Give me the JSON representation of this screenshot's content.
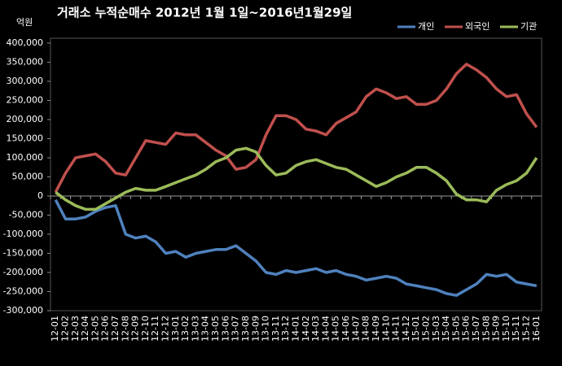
{
  "chart_data": {
    "type": "line",
    "title": "거래소  누적순매수 2012년 1월 1일~2016년1월29일",
    "y_label": "억원",
    "categories": [
      "12-01",
      "12-02",
      "12-03",
      "12-04",
      "12-05",
      "12-06",
      "12-07",
      "12-08",
      "12-09",
      "12-10",
      "12-11",
      "12-12",
      "13-01",
      "13-02",
      "13-03",
      "13-04",
      "13-05",
      "13-06",
      "13-07",
      "13-08",
      "13-09",
      "13-10",
      "13-11",
      "13-12",
      "14-01",
      "14-02",
      "14-03",
      "14-04",
      "14-05",
      "14-06",
      "14-07",
      "14-08",
      "14-09",
      "14-10",
      "14-11",
      "14-12",
      "15-01",
      "15-02",
      "15-03",
      "15-04",
      "15-05",
      "15-06",
      "15-07",
      "15-08",
      "15-09",
      "15-10",
      "15-11",
      "15-12",
      "16-01"
    ],
    "series": [
      {
        "name": "개인",
        "color": "#4f81bd",
        "values": [
          -10000,
          -60000,
          -60000,
          -55000,
          -40000,
          -30000,
          -25000,
          -100000,
          -110000,
          -105000,
          -120000,
          -150000,
          -145000,
          -160000,
          -150000,
          -145000,
          -140000,
          -140000,
          -130000,
          -150000,
          -170000,
          -200000,
          -205000,
          -195000,
          -200000,
          -195000,
          -190000,
          -200000,
          -195000,
          -205000,
          -210000,
          -220000,
          -215000,
          -210000,
          -215000,
          -230000,
          -235000,
          -240000,
          -245000,
          -255000,
          -260000,
          -245000,
          -230000,
          -205000,
          -210000,
          -205000,
          -225000,
          -230000,
          -235000
        ]
      },
      {
        "name": "외국인",
        "color": "#c0504d",
        "values": [
          10000,
          60000,
          100000,
          105000,
          110000,
          90000,
          60000,
          55000,
          100000,
          145000,
          140000,
          135000,
          165000,
          160000,
          160000,
          140000,
          120000,
          105000,
          70000,
          75000,
          95000,
          160000,
          210000,
          210000,
          200000,
          175000,
          170000,
          160000,
          190000,
          205000,
          220000,
          260000,
          280000,
          270000,
          255000,
          260000,
          240000,
          240000,
          250000,
          280000,
          320000,
          345000,
          330000,
          310000,
          280000,
          260000,
          265000,
          215000,
          180000
        ]
      },
      {
        "name": "기관",
        "color": "#9bbb59",
        "values": [
          10000,
          -10000,
          -25000,
          -35000,
          -35000,
          -20000,
          -5000,
          10000,
          20000,
          15000,
          15000,
          25000,
          35000,
          45000,
          55000,
          70000,
          90000,
          100000,
          120000,
          125000,
          115000,
          80000,
          55000,
          60000,
          80000,
          90000,
          95000,
          85000,
          75000,
          70000,
          55000,
          40000,
          25000,
          35000,
          50000,
          60000,
          75000,
          75000,
          60000,
          40000,
          5000,
          -10000,
          -10000,
          -15000,
          15000,
          30000,
          40000,
          60000,
          100000
        ]
      }
    ],
    "ylim": [
      -300000,
      400000
    ],
    "yticks": [
      {
        "value": -300000,
        "label": "-300,000"
      },
      {
        "value": -250000,
        "label": "-250,000"
      },
      {
        "value": -200000,
        "label": "-200,000"
      },
      {
        "value": -150000,
        "label": "-150,000"
      },
      {
        "value": -100000,
        "label": "-100,000"
      },
      {
        "value": -50000,
        "label": "-50,000"
      },
      0,
      {
        "value": 50000,
        "label": "50,000"
      },
      {
        "value": 100000,
        "label": "100,000"
      },
      {
        "value": 150000,
        "label": "150,000"
      },
      {
        "value": 200000,
        "label": "200,000"
      },
      {
        "value": 250000,
        "label": "250,000"
      },
      {
        "value": 300000,
        "label": "300,000"
      },
      {
        "value": 350000,
        "label": "350,000"
      },
      {
        "value": 400000,
        "label": "400,000"
      }
    ],
    "grid": false,
    "legend": "top-right"
  }
}
